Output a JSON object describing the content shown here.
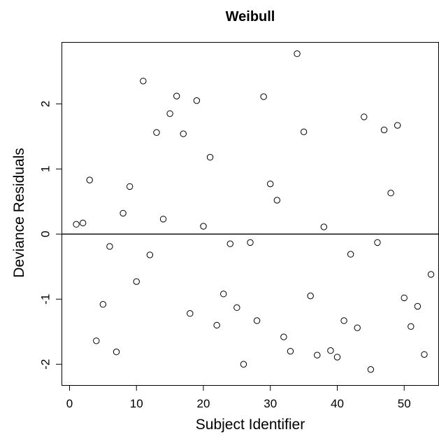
{
  "chart_data": {
    "type": "scatter",
    "title": "Weibull",
    "xlabel": "Subject Identifier",
    "ylabel": "Deviance Residuals",
    "xlim": [
      -1.2,
      55.2
    ],
    "ylim": [
      -2.32,
      2.95
    ],
    "x_ticks": [
      0,
      10,
      20,
      30,
      40,
      50
    ],
    "y_ticks": [
      -2,
      -1,
      0,
      1,
      2
    ],
    "reference_line": 0,
    "grid": false,
    "points": [
      {
        "x": 1,
        "y": 0.15
      },
      {
        "x": 2,
        "y": 0.17
      },
      {
        "x": 3,
        "y": 0.83
      },
      {
        "x": 4,
        "y": -1.64
      },
      {
        "x": 5,
        "y": -1.08
      },
      {
        "x": 6,
        "y": -0.19
      },
      {
        "x": 7,
        "y": -1.81
      },
      {
        "x": 8,
        "y": 0.32
      },
      {
        "x": 9,
        "y": 0.73
      },
      {
        "x": 10,
        "y": -0.73
      },
      {
        "x": 11,
        "y": 2.35
      },
      {
        "x": 12,
        "y": -0.32
      },
      {
        "x": 13,
        "y": 1.56
      },
      {
        "x": 14,
        "y": 0.23
      },
      {
        "x": 15,
        "y": 1.85
      },
      {
        "x": 16,
        "y": 2.12
      },
      {
        "x": 17,
        "y": 1.54
      },
      {
        "x": 18,
        "y": -1.22
      },
      {
        "x": 19,
        "y": 2.05
      },
      {
        "x": 20,
        "y": 0.12
      },
      {
        "x": 21,
        "y": 1.18
      },
      {
        "x": 22,
        "y": -1.4
      },
      {
        "x": 23,
        "y": -0.92
      },
      {
        "x": 24,
        "y": -0.15
      },
      {
        "x": 25,
        "y": -1.13
      },
      {
        "x": 26,
        "y": -2.0
      },
      {
        "x": 27,
        "y": -0.13
      },
      {
        "x": 28,
        "y": -1.33
      },
      {
        "x": 29,
        "y": 2.11
      },
      {
        "x": 30,
        "y": 0.77
      },
      {
        "x": 31,
        "y": 0.52
      },
      {
        "x": 32,
        "y": -1.58
      },
      {
        "x": 33,
        "y": -1.8
      },
      {
        "x": 34,
        "y": 2.77
      },
      {
        "x": 35,
        "y": 1.57
      },
      {
        "x": 36,
        "y": -0.95
      },
      {
        "x": 37,
        "y": -1.86
      },
      {
        "x": 38,
        "y": 0.11
      },
      {
        "x": 39,
        "y": -1.79
      },
      {
        "x": 40,
        "y": -1.89
      },
      {
        "x": 41,
        "y": -1.33
      },
      {
        "x": 42,
        "y": -0.31
      },
      {
        "x": 43,
        "y": -1.44
      },
      {
        "x": 44,
        "y": 1.8
      },
      {
        "x": 45,
        "y": -2.08
      },
      {
        "x": 46,
        "y": -0.13
      },
      {
        "x": 47,
        "y": 1.6
      },
      {
        "x": 48,
        "y": 0.63
      },
      {
        "x": 49,
        "y": 1.67
      },
      {
        "x": 50,
        "y": -0.98
      },
      {
        "x": 51,
        "y": -1.42
      },
      {
        "x": 52,
        "y": -1.11
      },
      {
        "x": 53,
        "y": -1.85
      },
      {
        "x": 54,
        "y": -0.62
      }
    ]
  }
}
